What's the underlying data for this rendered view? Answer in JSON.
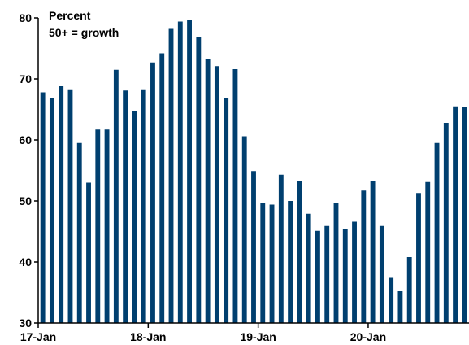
{
  "chart_data": {
    "type": "bar",
    "title": "",
    "xlabel": "",
    "ylabel": "",
    "ylim": [
      30,
      80
    ],
    "yticks": [
      30,
      40,
      50,
      60,
      70,
      80
    ],
    "ytick_labels": [
      "30",
      "40",
      "50",
      "60",
      "70",
      "80"
    ],
    "grid": false,
    "annotation_lines": [
      "Percent",
      "50+ = growth"
    ],
    "x_tick_labels": [
      {
        "label": "17-Jan",
        "index": 0
      },
      {
        "label": "18-Jan",
        "index": 12
      },
      {
        "label": "19-Jan",
        "index": 24
      },
      {
        "label": "20-Jan",
        "index": 36
      }
    ],
    "categories": [
      "Jan 2017",
      "Feb 2017",
      "Mar 2017",
      "Apr 2017",
      "May 2017",
      "Jun 2017",
      "Jul 2017",
      "Aug 2017",
      "Sep 2017",
      "Oct 2017",
      "Nov 2017",
      "Dec 2017",
      "Jan 2018",
      "Feb 2018",
      "Mar 2018",
      "Apr 2018",
      "May 2018",
      "Jun 2018",
      "Jul 2018",
      "Aug 2018",
      "Sep 2018",
      "Oct 2018",
      "Nov 2018",
      "Dec 2018",
      "Jan 2019",
      "Feb 2019",
      "Mar 2019",
      "Apr 2019",
      "May 2019",
      "Jun 2019",
      "Jul 2019",
      "Aug 2019",
      "Sep 2019",
      "Oct 2019",
      "Nov 2019",
      "Dec 2019",
      "Jan 2020",
      "Feb 2020",
      "Mar 2020",
      "Apr 2020",
      "May 2020",
      "Jun 2020",
      "Jul 2020",
      "Aug 2020",
      "Sep 2020",
      "Oct 2020",
      "Nov 2020"
    ],
    "values": [
      67.8,
      66.9,
      68.8,
      68.3,
      59.5,
      53.0,
      61.7,
      61.7,
      71.5,
      68.1,
      64.8,
      68.3,
      72.7,
      74.2,
      78.2,
      79.4,
      79.6,
      76.8,
      73.2,
      72.1,
      66.9,
      71.6,
      60.6,
      54.9,
      49.6,
      49.4,
      54.3,
      50.0,
      53.2,
      47.9,
      45.1,
      45.9,
      49.7,
      45.4,
      46.6,
      51.7,
      53.3,
      45.9,
      37.4,
      35.2,
      40.8,
      51.3,
      53.1,
      59.5,
      62.8,
      65.5,
      65.4
    ],
    "bar_color": "#003f6f",
    "axis_color": "#000000"
  }
}
